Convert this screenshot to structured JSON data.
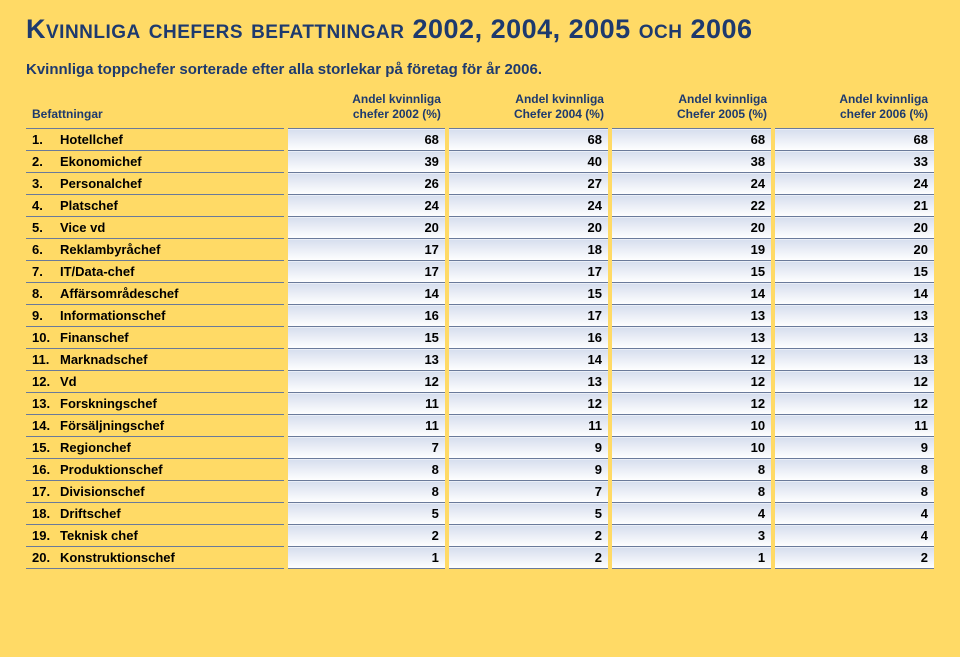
{
  "title_parts": {
    "prefix_caps": "Kvinnliga chefers befattningar",
    "years": " 2002, 2004, 2005 ",
    "och_caps": "och",
    "last_year": " 2006"
  },
  "subtitle": "Kvinnliga toppchefer sorterade efter alla storlekar på företag för år 2006.",
  "colors": {
    "page_bg": "#ffda66",
    "heading": "#1e3a6e",
    "row_border": "#6a7a9a",
    "cell_grad_top": "#d6deee",
    "cell_grad_bottom": "#ffffff"
  },
  "table": {
    "columns": [
      {
        "line1": "Befattningar",
        "line2": ""
      },
      {
        "line1": "Andel kvinnliga",
        "line2": "chefer 2002 (%)"
      },
      {
        "line1": "Andel kvinnliga",
        "line2": "Chefer 2004 (%)"
      },
      {
        "line1": "Andel kvinnliga",
        "line2": "Chefer 2005 (%)"
      },
      {
        "line1": "Andel kvinnliga",
        "line2": "chefer 2006 (%)"
      }
    ],
    "rows": [
      {
        "n": "1.",
        "label": "Hotellchef",
        "v": [
          68,
          68,
          68,
          68
        ]
      },
      {
        "n": "2.",
        "label": "Ekonomichef",
        "v": [
          39,
          40,
          38,
          33
        ]
      },
      {
        "n": "3.",
        "label": "Personalchef",
        "v": [
          26,
          27,
          24,
          24
        ]
      },
      {
        "n": "4.",
        "label": "Platschef",
        "v": [
          24,
          24,
          22,
          21
        ]
      },
      {
        "n": "5.",
        "label": "Vice vd",
        "v": [
          20,
          20,
          20,
          20
        ]
      },
      {
        "n": "6.",
        "label": "Reklambyråchef",
        "v": [
          17,
          18,
          19,
          20
        ]
      },
      {
        "n": "7.",
        "label": "IT/Data-chef",
        "v": [
          17,
          17,
          15,
          15
        ]
      },
      {
        "n": "8.",
        "label": "Affärsområdeschef",
        "v": [
          14,
          15,
          14,
          14
        ]
      },
      {
        "n": "9.",
        "label": "Informationschef",
        "v": [
          16,
          17,
          13,
          13
        ]
      },
      {
        "n": "10.",
        "label": "Finanschef",
        "v": [
          15,
          16,
          13,
          13
        ]
      },
      {
        "n": "11.",
        "label": "Marknadschef",
        "v": [
          13,
          14,
          12,
          13
        ]
      },
      {
        "n": "12.",
        "label": "Vd",
        "v": [
          12,
          13,
          12,
          12
        ]
      },
      {
        "n": "13.",
        "label": "Forskningschef",
        "v": [
          11,
          12,
          12,
          12
        ]
      },
      {
        "n": "14.",
        "label": "Försäljningschef",
        "v": [
          11,
          11,
          10,
          11
        ]
      },
      {
        "n": "15.",
        "label": "Regionchef",
        "v": [
          7,
          9,
          10,
          9
        ]
      },
      {
        "n": "16.",
        "label": "Produktionschef",
        "v": [
          8,
          9,
          8,
          8
        ]
      },
      {
        "n": "17.",
        "label": "Divisionschef",
        "v": [
          8,
          7,
          8,
          8
        ]
      },
      {
        "n": "18.",
        "label": "Driftschef",
        "v": [
          5,
          5,
          4,
          4
        ]
      },
      {
        "n": "19.",
        "label": "Teknisk chef",
        "v": [
          2,
          2,
          3,
          4
        ]
      },
      {
        "n": "20.",
        "label": "Konstruktionschef",
        "v": [
          1,
          2,
          1,
          2
        ]
      }
    ]
  }
}
